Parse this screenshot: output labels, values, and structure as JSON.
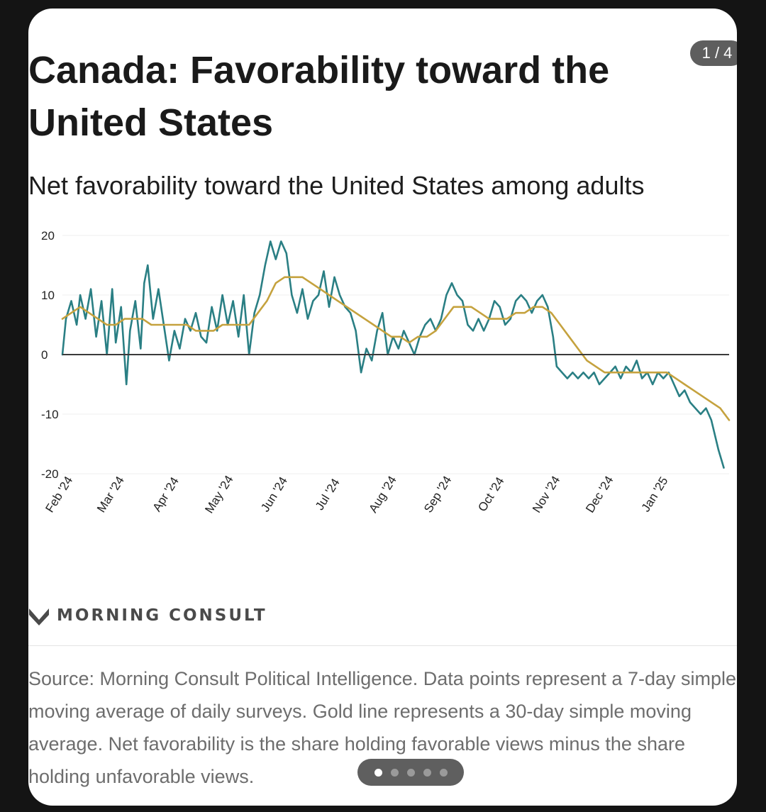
{
  "page": {
    "counter": "1 / 4",
    "title": "Canada: Favorability toward the United States",
    "subtitle": "Net favorability toward the United States among adults",
    "brand": "MORNING CONSULT",
    "source": "Source: Morning Consult Political Intelligence. Data points represent a 7-day simple moving average of daily surveys. Gold line represents a 30-day simple moving average. Net favorability is the share holding favorable views minus the share holding unfavorable views.",
    "pager": {
      "count": 5,
      "active": 0
    },
    "colors": {
      "seven_day": "#2a7f84",
      "thirty_day": "#c5a23e",
      "zero_line": "#3b3b3b",
      "text": "#1a1a1a"
    }
  },
  "chart_data": {
    "type": "line",
    "title": "Canada: Favorability toward the United States",
    "subtitle": "Net favorability toward the United States among adults",
    "xlabel": "",
    "ylabel": "",
    "ylim": [
      -20,
      20
    ],
    "yticks": [
      20,
      10,
      0,
      -10,
      -20
    ],
    "xlim": [
      "2024-02-01",
      "2025-02-10"
    ],
    "xticks": [
      {
        "date": "2024-02-01",
        "label": "Feb '24"
      },
      {
        "date": "2024-03-01",
        "label": "Mar '24"
      },
      {
        "date": "2024-04-01",
        "label": "Apr '24"
      },
      {
        "date": "2024-05-01",
        "label": "May '24"
      },
      {
        "date": "2024-06-01",
        "label": "Jun '24"
      },
      {
        "date": "2024-07-01",
        "label": "Jul '24"
      },
      {
        "date": "2024-08-01",
        "label": "Aug '24"
      },
      {
        "date": "2024-09-01",
        "label": "Sep '24"
      },
      {
        "date": "2024-10-01",
        "label": "Oct '24"
      },
      {
        "date": "2024-11-01",
        "label": "Nov '24"
      },
      {
        "date": "2024-12-01",
        "label": "Dec '24"
      },
      {
        "date": "2025-01-01",
        "label": "Jan '25"
      }
    ],
    "grid": true,
    "series": [
      {
        "color": "#2a7f84",
        "points": [
          [
            "2024-02-01",
            0
          ],
          [
            "2024-02-03",
            6
          ],
          [
            "2024-02-06",
            9
          ],
          [
            "2024-02-09",
            5
          ],
          [
            "2024-02-11",
            10
          ],
          [
            "2024-02-14",
            6
          ],
          [
            "2024-02-17",
            11
          ],
          [
            "2024-02-20",
            3
          ],
          [
            "2024-02-23",
            9
          ],
          [
            "2024-02-26",
            0
          ],
          [
            "2024-02-29",
            11
          ],
          [
            "2024-03-02",
            2
          ],
          [
            "2024-03-05",
            8
          ],
          [
            "2024-03-08",
            -5
          ],
          [
            "2024-03-10",
            4
          ],
          [
            "2024-03-13",
            9
          ],
          [
            "2024-03-16",
            1
          ],
          [
            "2024-03-18",
            12
          ],
          [
            "2024-03-20",
            15
          ],
          [
            "2024-03-23",
            6
          ],
          [
            "2024-03-26",
            11
          ],
          [
            "2024-03-29",
            5
          ],
          [
            "2024-04-01",
            -1
          ],
          [
            "2024-04-04",
            4
          ],
          [
            "2024-04-07",
            1
          ],
          [
            "2024-04-10",
            6
          ],
          [
            "2024-04-13",
            4
          ],
          [
            "2024-04-16",
            7
          ],
          [
            "2024-04-19",
            3
          ],
          [
            "2024-04-22",
            2
          ],
          [
            "2024-04-25",
            8
          ],
          [
            "2024-04-28",
            4
          ],
          [
            "2024-05-01",
            10
          ],
          [
            "2024-05-04",
            5
          ],
          [
            "2024-05-07",
            9
          ],
          [
            "2024-05-10",
            3
          ],
          [
            "2024-05-13",
            10
          ],
          [
            "2024-05-16",
            0
          ],
          [
            "2024-05-19",
            7
          ],
          [
            "2024-05-22",
            10
          ],
          [
            "2024-05-25",
            15
          ],
          [
            "2024-05-28",
            19
          ],
          [
            "2024-05-31",
            16
          ],
          [
            "2024-06-03",
            19
          ],
          [
            "2024-06-06",
            17
          ],
          [
            "2024-06-09",
            10
          ],
          [
            "2024-06-12",
            7
          ],
          [
            "2024-06-15",
            11
          ],
          [
            "2024-06-18",
            6
          ],
          [
            "2024-06-21",
            9
          ],
          [
            "2024-06-24",
            10
          ],
          [
            "2024-06-27",
            14
          ],
          [
            "2024-06-30",
            8
          ],
          [
            "2024-07-03",
            13
          ],
          [
            "2024-07-06",
            10
          ],
          [
            "2024-07-09",
            8
          ],
          [
            "2024-07-12",
            7
          ],
          [
            "2024-07-15",
            4
          ],
          [
            "2024-07-18",
            -3
          ],
          [
            "2024-07-21",
            1
          ],
          [
            "2024-07-24",
            -1
          ],
          [
            "2024-07-27",
            4
          ],
          [
            "2024-07-30",
            7
          ],
          [
            "2024-08-02",
            0
          ],
          [
            "2024-08-05",
            3
          ],
          [
            "2024-08-08",
            1
          ],
          [
            "2024-08-11",
            4
          ],
          [
            "2024-08-14",
            2
          ],
          [
            "2024-08-17",
            0
          ],
          [
            "2024-08-20",
            3
          ],
          [
            "2024-08-23",
            5
          ],
          [
            "2024-08-26",
            6
          ],
          [
            "2024-08-29",
            4
          ],
          [
            "2024-09-01",
            6
          ],
          [
            "2024-09-04",
            10
          ],
          [
            "2024-09-07",
            12
          ],
          [
            "2024-09-10",
            10
          ],
          [
            "2024-09-13",
            9
          ],
          [
            "2024-09-16",
            5
          ],
          [
            "2024-09-19",
            4
          ],
          [
            "2024-09-22",
            6
          ],
          [
            "2024-09-25",
            4
          ],
          [
            "2024-09-28",
            6
          ],
          [
            "2024-10-01",
            9
          ],
          [
            "2024-10-04",
            8
          ],
          [
            "2024-10-07",
            5
          ],
          [
            "2024-10-10",
            6
          ],
          [
            "2024-10-13",
            9
          ],
          [
            "2024-10-16",
            10
          ],
          [
            "2024-10-19",
            9
          ],
          [
            "2024-10-22",
            7
          ],
          [
            "2024-10-25",
            9
          ],
          [
            "2024-10-28",
            10
          ],
          [
            "2024-10-31",
            8
          ],
          [
            "2024-11-03",
            3
          ],
          [
            "2024-11-05",
            -2
          ],
          [
            "2024-11-08",
            -3
          ],
          [
            "2024-11-11",
            -4
          ],
          [
            "2024-11-14",
            -3
          ],
          [
            "2024-11-17",
            -4
          ],
          [
            "2024-11-20",
            -3
          ],
          [
            "2024-11-23",
            -4
          ],
          [
            "2024-11-26",
            -3
          ],
          [
            "2024-11-29",
            -5
          ],
          [
            "2024-12-02",
            -4
          ],
          [
            "2024-12-05",
            -3
          ],
          [
            "2024-12-08",
            -2
          ],
          [
            "2024-12-11",
            -4
          ],
          [
            "2024-12-14",
            -2
          ],
          [
            "2024-12-17",
            -3
          ],
          [
            "2024-12-20",
            -1
          ],
          [
            "2024-12-23",
            -4
          ],
          [
            "2024-12-26",
            -3
          ],
          [
            "2024-12-29",
            -5
          ],
          [
            "2025-01-01",
            -3
          ],
          [
            "2025-01-04",
            -4
          ],
          [
            "2025-01-07",
            -3
          ],
          [
            "2025-01-10",
            -5
          ],
          [
            "2025-01-13",
            -7
          ],
          [
            "2025-01-16",
            -6
          ],
          [
            "2025-01-19",
            -8
          ],
          [
            "2025-01-22",
            -9
          ],
          [
            "2025-01-25",
            -10
          ],
          [
            "2025-01-28",
            -9
          ],
          [
            "2025-01-31",
            -11
          ],
          [
            "2025-02-04",
            -16
          ],
          [
            "2025-02-07",
            -19
          ]
        ]
      },
      {
        "color": "#c5a23e",
        "points": [
          [
            "2024-02-01",
            6
          ],
          [
            "2024-02-06",
            7
          ],
          [
            "2024-02-11",
            8
          ],
          [
            "2024-02-16",
            7
          ],
          [
            "2024-02-21",
            6
          ],
          [
            "2024-02-26",
            5
          ],
          [
            "2024-03-02",
            5
          ],
          [
            "2024-03-07",
            6
          ],
          [
            "2024-03-12",
            6
          ],
          [
            "2024-03-17",
            6
          ],
          [
            "2024-03-22",
            5
          ],
          [
            "2024-03-27",
            5
          ],
          [
            "2024-04-01",
            5
          ],
          [
            "2024-04-06",
            5
          ],
          [
            "2024-04-11",
            5
          ],
          [
            "2024-04-16",
            4
          ],
          [
            "2024-04-21",
            4
          ],
          [
            "2024-04-26",
            4
          ],
          [
            "2024-05-01",
            5
          ],
          [
            "2024-05-06",
            5
          ],
          [
            "2024-05-11",
            5
          ],
          [
            "2024-05-16",
            5
          ],
          [
            "2024-05-21",
            7
          ],
          [
            "2024-05-26",
            9
          ],
          [
            "2024-05-31",
            12
          ],
          [
            "2024-06-05",
            13
          ],
          [
            "2024-06-10",
            13
          ],
          [
            "2024-06-15",
            13
          ],
          [
            "2024-06-20",
            12
          ],
          [
            "2024-06-25",
            11
          ],
          [
            "2024-06-30",
            10
          ],
          [
            "2024-07-05",
            9
          ],
          [
            "2024-07-10",
            8
          ],
          [
            "2024-07-15",
            7
          ],
          [
            "2024-07-20",
            6
          ],
          [
            "2024-07-25",
            5
          ],
          [
            "2024-07-30",
            4
          ],
          [
            "2024-08-04",
            3
          ],
          [
            "2024-08-09",
            3
          ],
          [
            "2024-08-14",
            2
          ],
          [
            "2024-08-19",
            3
          ],
          [
            "2024-08-24",
            3
          ],
          [
            "2024-08-29",
            4
          ],
          [
            "2024-09-03",
            6
          ],
          [
            "2024-09-08",
            8
          ],
          [
            "2024-09-13",
            8
          ],
          [
            "2024-09-18",
            8
          ],
          [
            "2024-09-23",
            7
          ],
          [
            "2024-09-28",
            6
          ],
          [
            "2024-10-03",
            6
          ],
          [
            "2024-10-08",
            6
          ],
          [
            "2024-10-13",
            7
          ],
          [
            "2024-10-18",
            7
          ],
          [
            "2024-10-23",
            8
          ],
          [
            "2024-10-28",
            8
          ],
          [
            "2024-11-02",
            7
          ],
          [
            "2024-11-07",
            5
          ],
          [
            "2024-11-12",
            3
          ],
          [
            "2024-11-17",
            1
          ],
          [
            "2024-11-22",
            -1
          ],
          [
            "2024-11-27",
            -2
          ],
          [
            "2024-12-02",
            -3
          ],
          [
            "2024-12-07",
            -3
          ],
          [
            "2024-12-12",
            -3
          ],
          [
            "2024-12-17",
            -3
          ],
          [
            "2024-12-22",
            -3
          ],
          [
            "2024-12-27",
            -3
          ],
          [
            "2025-01-01",
            -3
          ],
          [
            "2025-01-06",
            -3
          ],
          [
            "2025-01-11",
            -4
          ],
          [
            "2025-01-16",
            -5
          ],
          [
            "2025-01-21",
            -6
          ],
          [
            "2025-01-26",
            -7
          ],
          [
            "2025-01-31",
            -8
          ],
          [
            "2025-02-05",
            -9
          ],
          [
            "2025-02-10",
            -11
          ]
        ]
      }
    ]
  }
}
